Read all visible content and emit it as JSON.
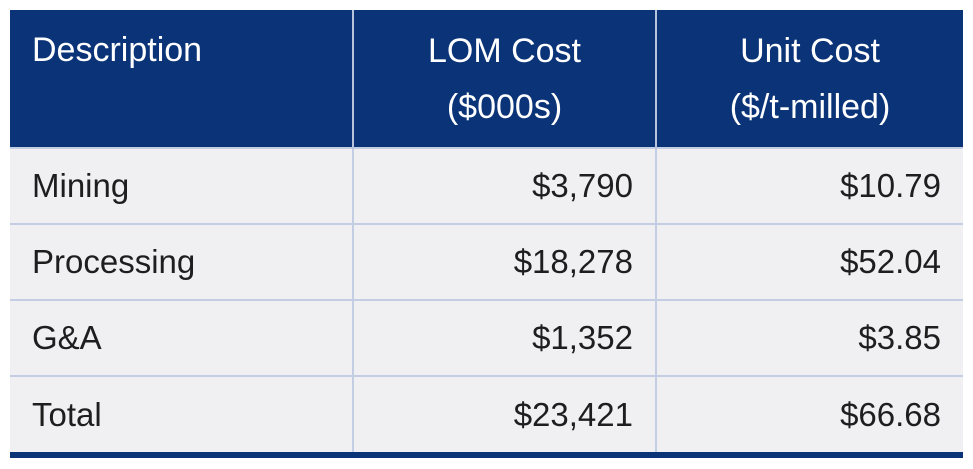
{
  "table": {
    "headers": {
      "description": "Description",
      "lom_cost_line1": "LOM Cost",
      "lom_cost_line2": "($000s)",
      "unit_cost_line1": "Unit Cost",
      "unit_cost_line2": "($/t-milled)"
    },
    "rows": [
      {
        "description": "Mining",
        "lom_cost": "$3,790",
        "unit_cost": "$10.79"
      },
      {
        "description": "Processing",
        "lom_cost": "$18,278",
        "unit_cost": "$52.04"
      },
      {
        "description": "G&A",
        "lom_cost": "$1,352",
        "unit_cost": "$3.85"
      },
      {
        "description": "Total",
        "lom_cost": "$23,421",
        "unit_cost": "$66.68"
      }
    ]
  },
  "colors": {
    "header_background": "#0b3478",
    "row_background": "#f0f0f3",
    "grid_lines": "#c3cde3"
  }
}
